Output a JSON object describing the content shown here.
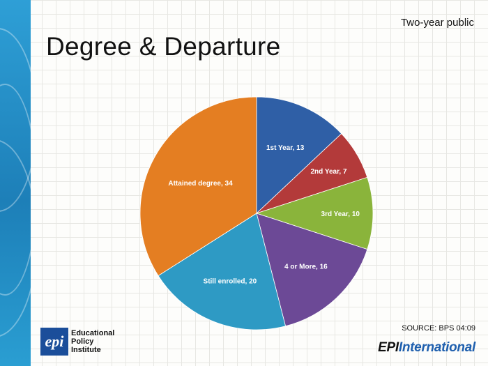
{
  "header": {
    "subtitle": "Two-year public",
    "title": "Degree & Departure"
  },
  "chart_data": {
    "type": "pie",
    "categories": [
      "1st Year",
      "2nd Year",
      "3rd Year",
      "4 or More",
      "Still enrolled",
      "Attained degree"
    ],
    "values": [
      13,
      7,
      10,
      16,
      20,
      34
    ],
    "labels": [
      "1st Year, 13",
      "2nd Year, 7",
      "3rd Year, 10",
      "4 or More, 16",
      "Still enrolled, 20",
      "Attained degree, 34"
    ],
    "colors": [
      "#2f5fa6",
      "#b33a3a",
      "#8ab43b",
      "#6c4996",
      "#2e9ac4",
      "#e47e22"
    ]
  },
  "footer": {
    "source": "SOURCE: BPS 04:09",
    "logo_mark": "epi",
    "logo_text_line1": "Educational",
    "logo_text_line2": "Policy",
    "logo_text_line3": "Institute",
    "brand_prefix": "EPI",
    "brand_suffix": "International"
  }
}
